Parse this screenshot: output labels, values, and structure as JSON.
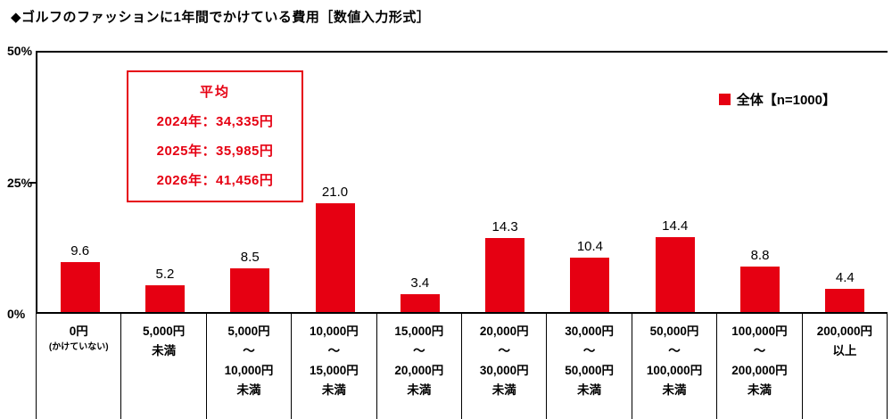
{
  "chart_data": {
    "type": "bar",
    "title": "◆ゴルフのファッションに1年間でかけている費用［数値入力形式］",
    "legend": "全体【n=1000】",
    "bar_color": "#e60012",
    "annotation_color": "#e60012",
    "ylim": [
      0,
      50
    ],
    "y_ticks": [
      {
        "label": "50%",
        "frac": 0
      },
      {
        "label": "25%",
        "frac": 0.5
      },
      {
        "label": "0%",
        "frac": 1
      }
    ],
    "categories": [
      [
        "0円",
        "(かけていない)"
      ],
      [
        "5,000円",
        "未満"
      ],
      [
        "5,000円",
        "〜",
        "10,000円",
        "未満"
      ],
      [
        "10,000円",
        "〜",
        "15,000円",
        "未満"
      ],
      [
        "15,000円",
        "〜",
        "20,000円",
        "未満"
      ],
      [
        "20,000円",
        "〜",
        "30,000円",
        "未満"
      ],
      [
        "30,000円",
        "〜",
        "50,000円",
        "未満"
      ],
      [
        "50,000円",
        "〜",
        "100,000円",
        "未満"
      ],
      [
        "100,000円",
        "〜",
        "200,000円",
        "未満"
      ],
      [
        "200,000円",
        "以上"
      ]
    ],
    "values": [
      9.6,
      5.2,
      8.5,
      21.0,
      3.4,
      14.3,
      10.4,
      14.4,
      8.8,
      4.4
    ],
    "annotation": {
      "title": "平均",
      "lines": [
        "2024年：34,335円",
        "2025年：35,985円",
        "2026年：41,456円"
      ]
    }
  }
}
